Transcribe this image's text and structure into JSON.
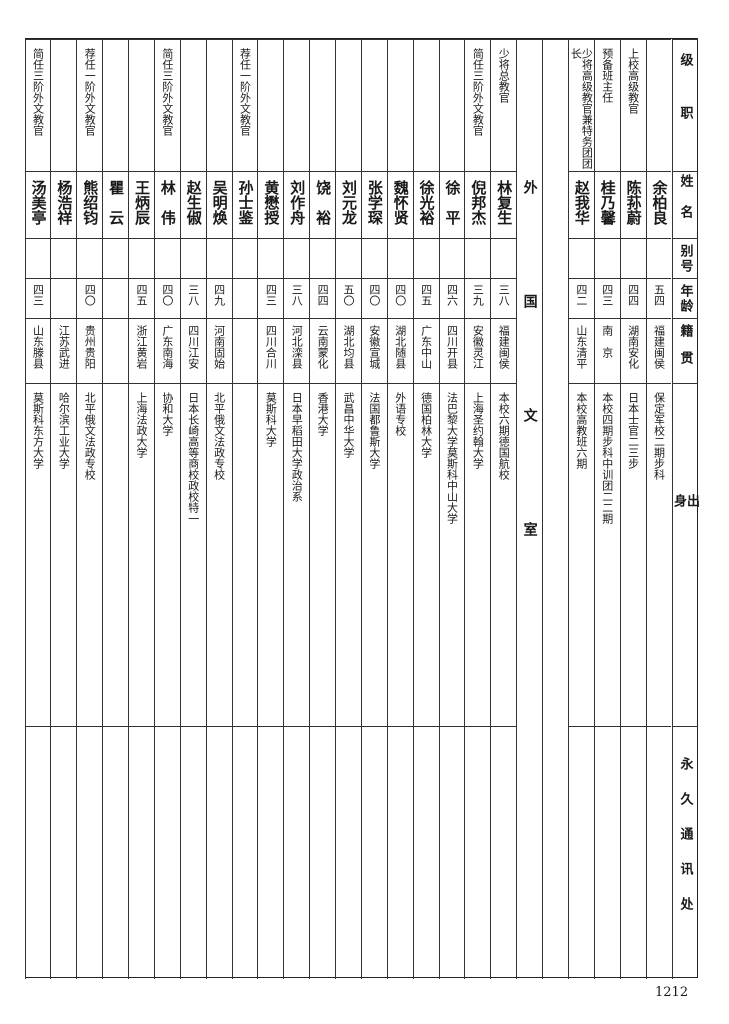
{
  "headers": {
    "rank": "级职",
    "name": "姓名",
    "alias": "别号",
    "age": "年龄",
    "native_place": "籍贯",
    "background": "出身",
    "address": "永久通讯处"
  },
  "section_label": "外国文室",
  "rows_right": [
    {
      "rank": "",
      "name": "余柏良",
      "alias": "",
      "age": "五四",
      "native_place": "福建闽侯",
      "background": "保定军校二期步科",
      "address": ""
    },
    {
      "rank": "上校高级教官",
      "name": "陈荪蔚",
      "alias": "",
      "age": "四四",
      "native_place": "湖南安化",
      "background": "日本士官二三步",
      "address": ""
    },
    {
      "rank": "预备班主任",
      "name": "桂乃馨",
      "alias": "",
      "age": "四三",
      "native_place": "南　京",
      "background": "本校四期步科中训团二二期",
      "address": ""
    },
    {
      "rank": "少将高级教官兼特务团团长",
      "name": "赵我华",
      "alias": "",
      "age": "四二",
      "native_place": "山东清平",
      "background": "本校高教班六期",
      "address": ""
    }
  ],
  "rows_left": [
    {
      "rank": "少将总教官",
      "name": "林复生",
      "alias": "",
      "age": "三八",
      "native_place": "福建闽侯",
      "background": "本校六期德国航校",
      "address": ""
    },
    {
      "rank": "简任三阶外文教官",
      "name": "倪邦杰",
      "alias": "",
      "age": "三九",
      "native_place": "安徽灵江",
      "background": "上海圣约翰大学",
      "address": ""
    },
    {
      "rank": "",
      "name": "徐　平",
      "alias": "",
      "age": "四六",
      "native_place": "四川开县",
      "background": "法巴黎大学莫斯科中山大学",
      "address": ""
    },
    {
      "rank": "",
      "name": "徐光裕",
      "alias": "",
      "age": "四五",
      "native_place": "广东中山",
      "background": "德国柏林大学",
      "address": ""
    },
    {
      "rank": "",
      "name": "魏怀贤",
      "alias": "",
      "age": "四〇",
      "native_place": "湖北随县",
      "background": "外语专校",
      "address": ""
    },
    {
      "rank": "",
      "name": "张学琛",
      "alias": "",
      "age": "四〇",
      "native_place": "安徽宣城",
      "background": "法国都鲁斯大学",
      "address": ""
    },
    {
      "rank": "",
      "name": "刘元龙",
      "alias": "",
      "age": "五〇",
      "native_place": "湖北均县",
      "background": "武昌中华大学",
      "address": ""
    },
    {
      "rank": "",
      "name": "饶　裕",
      "alias": "",
      "age": "四四",
      "native_place": "云南蒙化",
      "background": "香港大学",
      "address": ""
    },
    {
      "rank": "",
      "name": "刘作舟",
      "alias": "",
      "age": "三八",
      "native_place": "河北滦县",
      "background": "日本早稻田大学政治系",
      "address": ""
    },
    {
      "rank": "",
      "name": "黄懋授",
      "alias": "",
      "age": "四三",
      "native_place": "四川合川",
      "background": "莫斯科大学",
      "address": ""
    },
    {
      "rank": "荐任一阶外文教官",
      "name": "孙士鉴",
      "alias": "",
      "age": "",
      "native_place": "",
      "background": "",
      "address": ""
    },
    {
      "rank": "",
      "name": "吴明焕",
      "alias": "",
      "age": "四九",
      "native_place": "河南固始",
      "background": "北平俄文法政专校",
      "address": ""
    },
    {
      "rank": "",
      "name": "赵生俶",
      "alias": "",
      "age": "三八",
      "native_place": "四川江安",
      "background": "日本长崎高等商校政校特一",
      "address": ""
    },
    {
      "rank": "简任三阶外文教官",
      "name": "林　伟",
      "alias": "",
      "age": "四〇",
      "native_place": "广东南海",
      "background": "协和大学",
      "address": ""
    },
    {
      "rank": "",
      "name": "王炳辰",
      "alias": "",
      "age": "四五",
      "native_place": "浙江黄岩",
      "background": "上海法政大学",
      "address": ""
    },
    {
      "rank": "",
      "name": "瞿　云",
      "alias": "",
      "age": "",
      "native_place": "",
      "background": "",
      "address": ""
    },
    {
      "rank": "荐任一阶外文教官",
      "name": "熊绍钧",
      "alias": "",
      "age": "四〇",
      "native_place": "贵州贵阳",
      "background": "北平俄文法政专校",
      "address": ""
    },
    {
      "rank": "",
      "name": "杨浩祥",
      "alias": "",
      "age": "",
      "native_place": "江苏武进",
      "background": "哈尔滨工业大学",
      "address": ""
    },
    {
      "rank": "简任三阶外文教官",
      "name": "汤美亭",
      "alias": "",
      "age": "四三",
      "native_place": "山东滕县",
      "background": "莫斯科东方大学",
      "address": ""
    }
  ],
  "page_number": "1212"
}
